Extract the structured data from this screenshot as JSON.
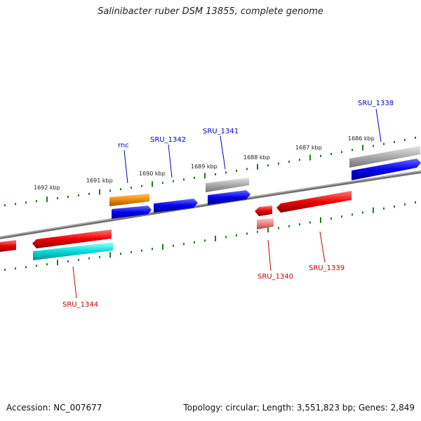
{
  "title": "Salinibacter ruber DSM 13855, complete genome",
  "footer": {
    "accession": "Accession: NC_007677",
    "topology": "Topology: circular; Length: 3,551,823 bp; Genes: 2,849"
  },
  "colors": {
    "backbone": "#7a7a7a",
    "tick": "#1f7a1f",
    "label_forward": "#0000c8",
    "label_reverse": "#c80000",
    "blue": "#0000ee",
    "red": "#ee0000",
    "orange": "#ee8800",
    "gray": "#aaaaaa",
    "cyan": "#00dddd",
    "pink": "#ee8080"
  },
  "scale_labels": [
    "1692 kbp",
    "1691 kbp",
    "1690 kbp",
    "1689 kbp",
    "1688 kbp",
    "1687 kbp",
    "1686 kbp"
  ],
  "gene_labels": {
    "rnc": "rnc",
    "sru_1342": "SRU_1342",
    "sru_1341": "SRU_1341",
    "sru_1338": "SRU_1338",
    "sru_1344": "SRU_1344",
    "sru_1340": "SRU_1340",
    "sru_1339": "SRU_1339"
  }
}
